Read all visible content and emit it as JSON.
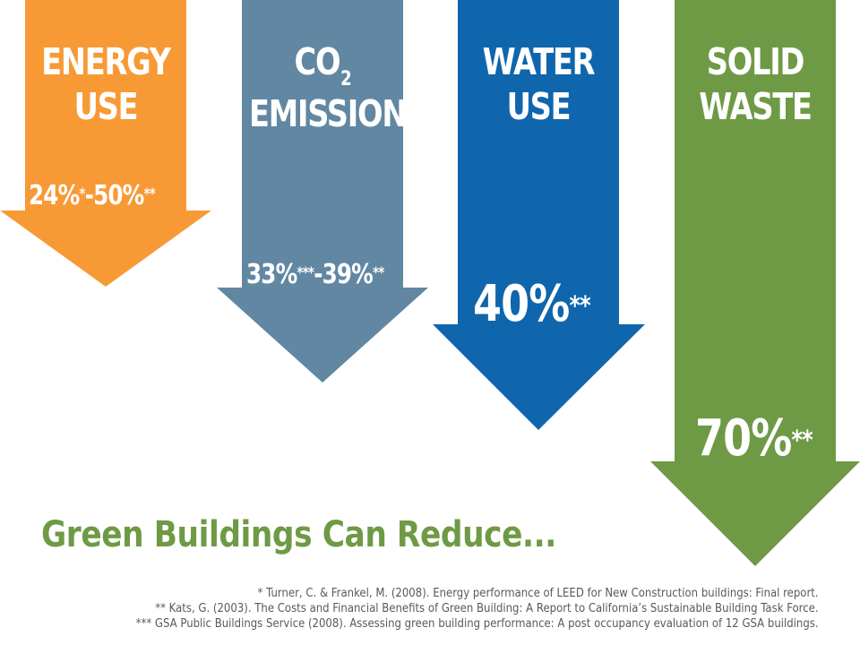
{
  "colors": {
    "energy": "#f79a36",
    "co2": "#6187a2",
    "water": "#0f66ac",
    "waste": "#6e9a45",
    "headline": "#6e9a45",
    "footnote_text": "#58595b"
  },
  "arrows": [
    {
      "key": "energy",
      "label_lines": [
        "ENERGY",
        "USE"
      ],
      "value": "24%",
      "value_mark": "*",
      "separator": "-",
      "value2": "50%",
      "value2_mark": "**"
    },
    {
      "key": "co2",
      "label_main": "CO",
      "label_sub": "2",
      "label_line2": "EMISSIONS",
      "value": "33%",
      "value_mark": "***",
      "separator": "-",
      "value2": "39%",
      "value2_mark": "**"
    },
    {
      "key": "water",
      "label_lines": [
        "WATER",
        "USE"
      ],
      "value": "40%",
      "value_mark": "**"
    },
    {
      "key": "waste",
      "label_lines": [
        "SOLID",
        "WASTE"
      ],
      "value": "70%",
      "value_mark": "**"
    }
  ],
  "headline": "Green Buildings Can Reduce...",
  "footnotes": [
    "* Turner, C. & Frankel, M. (2008). Energy performance of LEED for New Construction buildings: Final report.",
    "** Kats, G. (2003). The Costs and Financial Benefits of Green Building: A Report to California’s Sustainable Building Task Force.",
    "*** GSA Public Buildings Service (2008). Assessing green building performance: A post occupancy evaluation of 12 GSA buildings."
  ]
}
